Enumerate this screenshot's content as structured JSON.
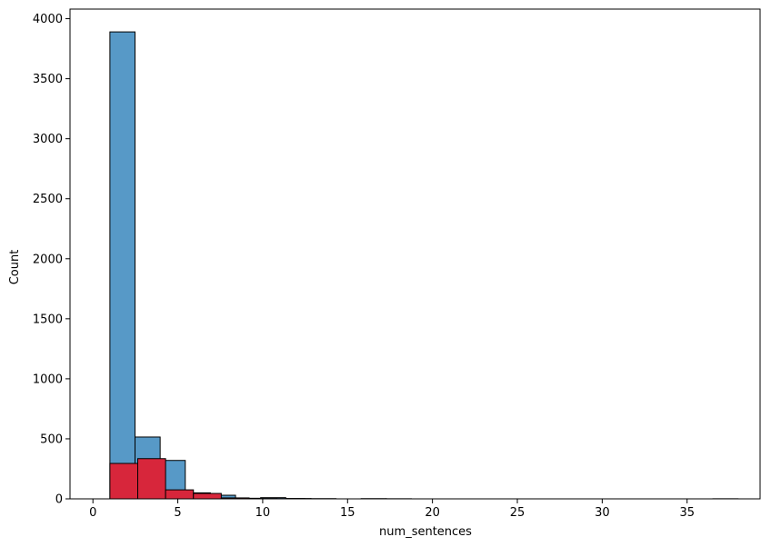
{
  "chart_data": {
    "type": "bar",
    "title": "",
    "xlabel": "num_sentences",
    "ylabel": "Count",
    "xlim": [
      -1.35,
      39.3
    ],
    "ylim": [
      0,
      4080
    ],
    "grid": false,
    "xticks": [
      0,
      5,
      10,
      15,
      20,
      25,
      30,
      35
    ],
    "yticks": [
      0,
      500,
      1000,
      1500,
      2000,
      2500,
      3000,
      3500,
      4000
    ],
    "series": [
      {
        "color": "#5799c7",
        "edgecolor": "#000000",
        "bins": [
          {
            "x0": 1.0,
            "x1": 2.48,
            "count": 3890
          },
          {
            "x0": 2.48,
            "x1": 3.96,
            "count": 515
          },
          {
            "x0": 3.96,
            "x1": 5.44,
            "count": 320
          },
          {
            "x0": 5.44,
            "x1": 6.92,
            "count": 50
          },
          {
            "x0": 6.92,
            "x1": 8.4,
            "count": 30
          },
          {
            "x0": 8.4,
            "x1": 9.88,
            "count": 5
          },
          {
            "x0": 9.88,
            "x1": 11.36,
            "count": 10
          },
          {
            "x0": 11.36,
            "x1": 12.84,
            "count": 3
          },
          {
            "x0": 12.84,
            "x1": 14.32,
            "count": 2
          },
          {
            "x0": 15.8,
            "x1": 17.28,
            "count": 2
          },
          {
            "x0": 17.28,
            "x1": 18.76,
            "count": 1
          },
          {
            "x0": 36.52,
            "x1": 38.0,
            "count": 1
          }
        ]
      },
      {
        "color": "#d7263b",
        "edgecolor": "#000000",
        "bins": [
          {
            "x0": 1.0,
            "x1": 2.64,
            "count": 295
          },
          {
            "x0": 2.64,
            "x1": 4.28,
            "count": 335
          },
          {
            "x0": 4.28,
            "x1": 5.92,
            "count": 75
          },
          {
            "x0": 5.92,
            "x1": 7.56,
            "count": 45
          },
          {
            "x0": 7.56,
            "x1": 9.2,
            "count": 8
          },
          {
            "x0": 9.2,
            "x1": 10.84,
            "count": 3
          },
          {
            "x0": 10.84,
            "x1": 12.48,
            "count": 2
          }
        ]
      }
    ]
  }
}
